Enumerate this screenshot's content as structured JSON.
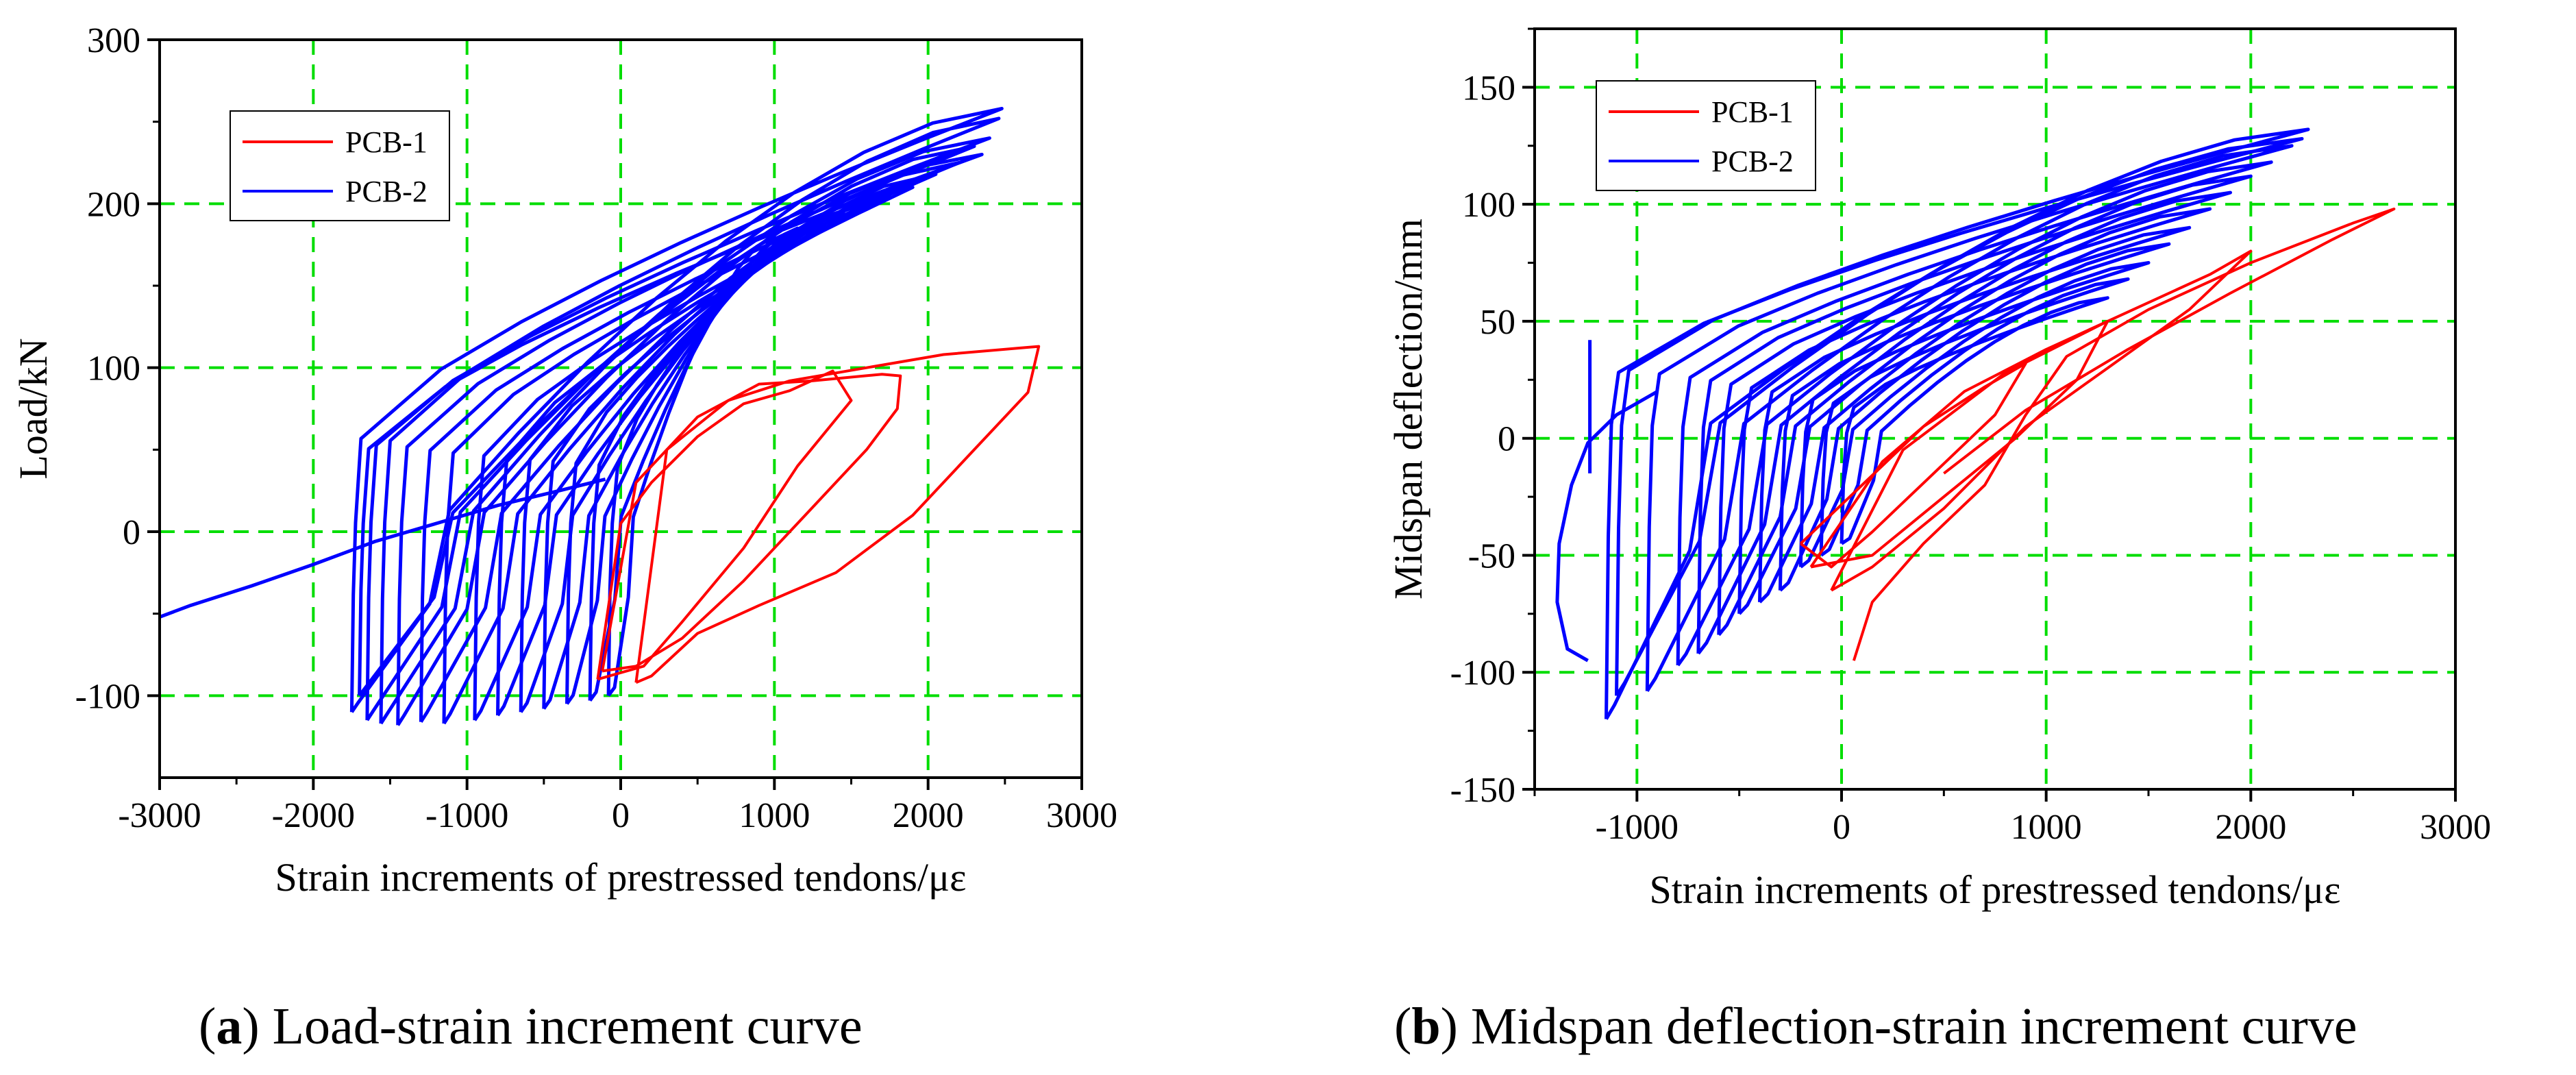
{
  "colors": {
    "pcb1": "#ff0000",
    "pcb2": "#0000ff",
    "grid": "#00dd00",
    "axis": "#000000"
  },
  "captions": [
    {
      "open": "(",
      "letter": "a",
      "close": ")",
      "text": " Load-strain increment curve"
    },
    {
      "open": "(",
      "letter": "b",
      "close": ")",
      "text": " Midspan deflection-strain increment curve"
    }
  ],
  "chart_data": [
    {
      "type": "line",
      "xlabel": "Strain increments of prestressed tendons/με",
      "ylabel": "Load/kN",
      "xlim": [
        -3000,
        3000
      ],
      "ylim": [
        -150,
        300
      ],
      "xticks": [
        -3000,
        -2000,
        -1000,
        0,
        1000,
        2000,
        3000
      ],
      "yticks": [
        -100,
        0,
        100,
        200,
        300
      ],
      "grid": true,
      "legend_position": "top-left",
      "series": [
        {
          "name": "PCB-1",
          "loops": [
            [
              [
                -150,
                -90
              ],
              [
                0,
                5
              ],
              [
                200,
                30
              ],
              [
                500,
                58
              ],
              [
                800,
                78
              ],
              [
                1100,
                86
              ],
              [
                1380,
                98
              ],
              [
                1500,
                80
              ],
              [
                1150,
                40
              ],
              [
                800,
                -10
              ],
              [
                400,
                -55
              ],
              [
                150,
                -82
              ],
              [
                -150,
                -90
              ]
            ],
            [
              [
                -120,
                -85
              ],
              [
                100,
                30
              ],
              [
                500,
                70
              ],
              [
                900,
                90
              ],
              [
                1250,
                92
              ],
              [
                1700,
                96
              ],
              [
                1820,
                95
              ],
              [
                1800,
                75
              ],
              [
                1600,
                50
              ],
              [
                1200,
                10
              ],
              [
                800,
                -30
              ],
              [
                400,
                -65
              ],
              [
                100,
                -82
              ],
              [
                -120,
                -85
              ]
            ],
            [
              [
                100,
                -92
              ],
              [
                300,
                50
              ],
              [
                700,
                80
              ],
              [
                1100,
                92
              ],
              [
                1600,
                100
              ],
              [
                2100,
                108
              ],
              [
                2600,
                112
              ],
              [
                2720,
                113
              ],
              [
                2650,
                85
              ],
              [
                2300,
                50
              ],
              [
                1900,
                10
              ],
              [
                1400,
                -25
              ],
              [
                900,
                -45
              ],
              [
                500,
                -62
              ],
              [
                200,
                -88
              ],
              [
                100,
                -92
              ]
            ]
          ]
        },
        {
          "name": "PCB-2",
          "tail": [
            [
              -3000,
              -52
            ],
            [
              -2800,
              -45
            ],
            [
              -2400,
              -33
            ],
            [
              -2000,
              -20
            ],
            [
              -1600,
              -6
            ],
            [
              -1200,
              5
            ],
            [
              -800,
              16
            ],
            [
              -400,
              25
            ],
            [
              -100,
              32
            ]
          ],
          "loops": [
            {
              "start": -1700,
              "peak": [
                2350,
                230
              ],
              "min": -100
            },
            {
              "start": -1650,
              "peak": [
                2400,
                240
              ],
              "min": -115
            },
            {
              "start": -1450,
              "peak": [
                2300,
                235
              ],
              "min": -118
            },
            {
              "start": -1300,
              "peak": [
                2200,
                225
              ],
              "min": -116
            },
            {
              "start": -1150,
              "peak": [
                2050,
                218
              ],
              "min": -117
            },
            {
              "start": -950,
              "peak": [
                1900,
                210
              ],
              "min": -115
            },
            {
              "start": -800,
              "peak": [
                1750,
                205
              ],
              "min": -112
            },
            {
              "start": -650,
              "peak": [
                1600,
                200
              ],
              "min": -110
            },
            {
              "start": -500,
              "peak": [
                1450,
                195
              ],
              "min": -108
            },
            {
              "start": -350,
              "peak": [
                1300,
                190
              ],
              "min": -105
            },
            {
              "start": -200,
              "peak": [
                1150,
                185
              ],
              "min": -103
            },
            {
              "start": -80,
              "peak": [
                1000,
                180
              ],
              "min": -100
            },
            {
              "start": -1750,
              "peak": [
                2480,
                258
              ],
              "min": -110
            },
            {
              "start": -1560,
              "peak": [
                2460,
                252
              ],
              "min": -117
            }
          ]
        }
      ]
    },
    {
      "type": "line",
      "xlabel": "Strain increments of prestressed tendons/με",
      "ylabel": "Midspan deflection/mm",
      "xlim": [
        -1500,
        3000
      ],
      "ylim": [
        -150,
        175
      ],
      "xticks": [
        -1000,
        0,
        1000,
        2000,
        3000
      ],
      "yticks": [
        -150,
        -100,
        -50,
        0,
        50,
        100,
        150
      ],
      "grid": true,
      "legend_position": "top-left",
      "series": [
        {
          "name": "PCB-1",
          "loops": [
            [
              [
                -200,
                -45
              ],
              [
                100,
                -20
              ],
              [
                400,
                5
              ],
              [
                700,
                22
              ],
              [
                900,
                32
              ],
              [
                750,
                10
              ],
              [
                450,
                -15
              ],
              [
                150,
                -40
              ],
              [
                -50,
                -55
              ],
              [
                -200,
                -45
              ]
            ],
            [
              [
                -150,
                -55
              ],
              [
                200,
                -10
              ],
              [
                600,
                20
              ],
              [
                1000,
                38
              ],
              [
                1300,
                50
              ],
              [
                1150,
                25
              ],
              [
                850,
                0
              ],
              [
                500,
                -25
              ],
              [
                150,
                -50
              ],
              [
                -150,
                -55
              ]
            ],
            [
              [
                -50,
                -65
              ],
              [
                300,
                -5
              ],
              [
                800,
                28
              ],
              [
                1300,
                50
              ],
              [
                1800,
                70
              ],
              [
                2000,
                80
              ],
              [
                1700,
                55
              ],
              [
                1300,
                30
              ],
              [
                900,
                5
              ],
              [
                500,
                -30
              ],
              [
                150,
                -55
              ],
              [
                -50,
                -65
              ]
            ],
            [
              [
                60,
                -95
              ],
              [
                150,
                -70
              ],
              [
                400,
                -45
              ],
              [
                700,
                -20
              ],
              [
                900,
                10
              ],
              [
                1100,
                35
              ],
              [
                1500,
                55
              ],
              [
                2000,
                75
              ],
              [
                2500,
                92
              ],
              [
                2700,
                98
              ],
              [
                2400,
                85
              ],
              [
                1900,
                62
              ],
              [
                1400,
                38
              ],
              [
                900,
                12
              ],
              [
                500,
                -15
              ]
            ]
          ]
        },
        {
          "name": "PCB-2",
          "spike": [
            [
              -1230,
              42
            ],
            [
              -1230,
              -15
            ]
          ],
          "tail": [
            [
              -1240,
              -95
            ],
            [
              -1340,
              -90
            ],
            [
              -1390,
              -70
            ],
            [
              -1380,
              -45
            ],
            [
              -1320,
              -20
            ],
            [
              -1240,
              -2
            ],
            [
              -1100,
              10
            ],
            [
              -900,
              20
            ]
          ],
          "loops": [
            {
              "start": -1100,
              "peak": [
                2280,
                132
              ],
              "min": -110
            },
            {
              "start": -950,
              "peak": [
                2200,
                125
              ],
              "min": -108
            },
            {
              "start": -800,
              "peak": [
                2100,
                118
              ],
              "min": -97
            },
            {
              "start": -700,
              "peak": [
                2000,
                112
              ],
              "min": -92
            },
            {
              "start": -600,
              "peak": [
                1900,
                105
              ],
              "min": -84
            },
            {
              "start": -500,
              "peak": [
                1800,
                98
              ],
              "min": -75
            },
            {
              "start": -400,
              "peak": [
                1700,
                90
              ],
              "min": -70
            },
            {
              "start": -300,
              "peak": [
                1600,
                83
              ],
              "min": -65
            },
            {
              "start": -200,
              "peak": [
                1500,
                75
              ],
              "min": -55
            },
            {
              "start": -100,
              "peak": [
                1400,
                68
              ],
              "min": -50
            },
            {
              "start": 0,
              "peak": [
                1300,
                60
              ],
              "min": -45
            },
            {
              "start": -1150,
              "peak": [
                2250,
                128
              ],
              "min": -120
            }
          ]
        }
      ]
    }
  ]
}
